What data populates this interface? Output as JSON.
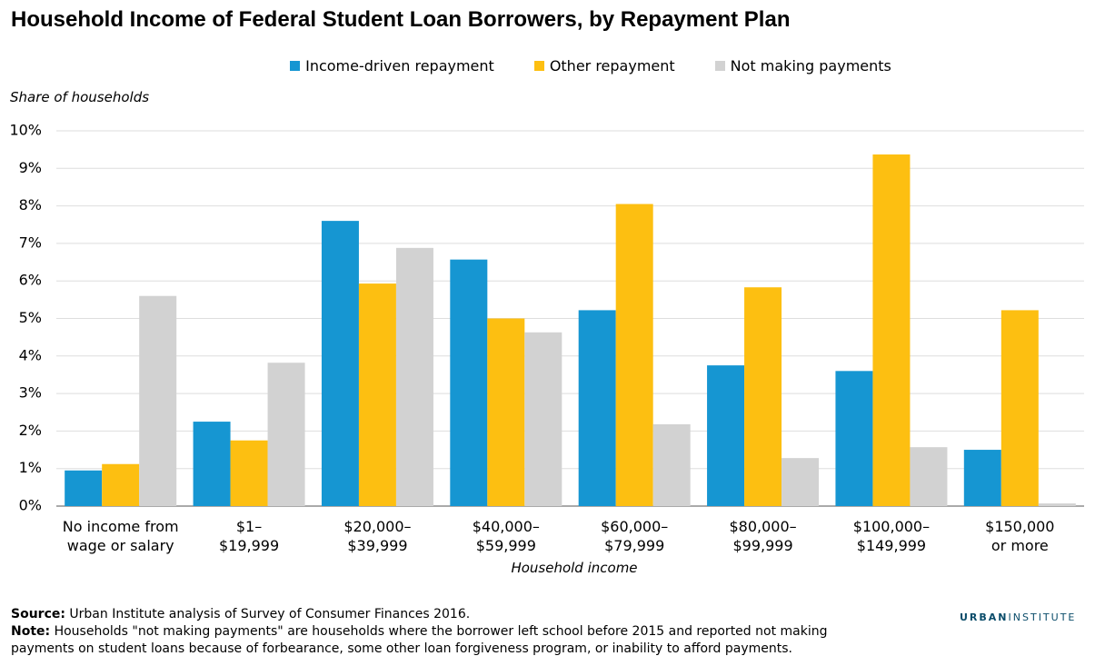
{
  "chart_data": {
    "type": "bar",
    "title": "Household Income of Federal Student Loan Borrowers, by Repayment Plan",
    "y_label": "Share of households",
    "x_label": "Household income",
    "categories": [
      "No income from\nwage or salary",
      "$1–\n$19,999",
      "$20,000–\n$39,999",
      "$40,000–\n$59,999",
      "$60,000–\n$79,999",
      "$80,000–\n$99,999",
      "$100,000–\n$149,999",
      "$150,000\nor more"
    ],
    "series": [
      {
        "name": "Income-driven repayment",
        "color": "#1696d2",
        "values": [
          0.95,
          2.25,
          7.6,
          6.57,
          5.22,
          3.75,
          3.6,
          1.5
        ]
      },
      {
        "name": "Other repayment",
        "color": "#fdbf11",
        "values": [
          1.12,
          1.75,
          5.93,
          5.0,
          8.05,
          5.83,
          9.37,
          5.22
        ]
      },
      {
        "name": "Not making payments",
        "color": "#d2d2d2",
        "values": [
          5.6,
          3.82,
          6.88,
          4.63,
          2.18,
          1.28,
          1.57,
          0.07
        ]
      }
    ],
    "ylim": [
      0,
      10
    ],
    "yticks": [
      {
        "value": 0,
        "label": "0%"
      },
      {
        "value": 1,
        "label": "1%"
      },
      {
        "value": 2,
        "label": "2%"
      },
      {
        "value": 3,
        "label": "3%"
      },
      {
        "value": 4,
        "label": "4%"
      },
      {
        "value": 5,
        "label": "5%"
      },
      {
        "value": 6,
        "label": "6%"
      },
      {
        "value": 7,
        "label": "7%"
      },
      {
        "value": 8,
        "label": "8%"
      },
      {
        "value": 9,
        "label": "9%"
      },
      {
        "value": 10,
        "label": "10%"
      }
    ],
    "grid": true,
    "legend": "top"
  },
  "footer": {
    "source_label": "Source:",
    "source_text": "Urban Institute analysis of Survey of Consumer Finances 2016.",
    "note_label": "Note:",
    "note_text": "Households \"not making payments\" are households where the borrower left school before 2015 and reported not making payments on student loans because of forbearance, some other loan forgiveness program, or inability to afford payments.",
    "logo_bold": "URBAN",
    "logo_light": "INSTITUTE"
  }
}
